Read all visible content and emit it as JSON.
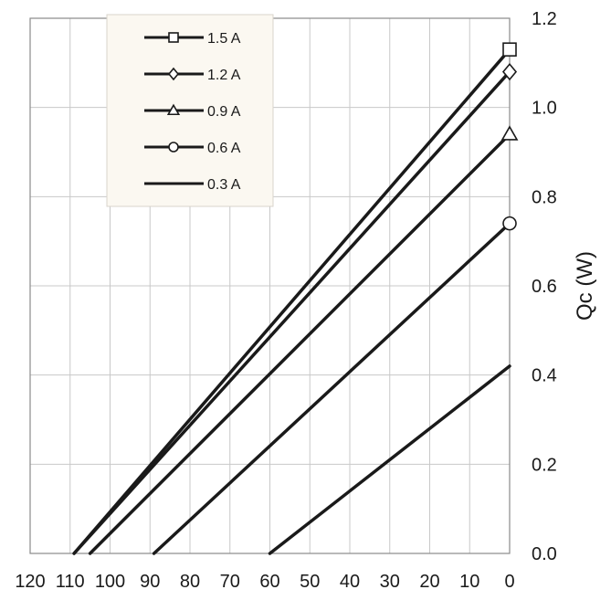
{
  "chart_data": {
    "type": "line",
    "xlabel": "",
    "ylabel": "Qc (W)",
    "xlim": [
      120,
      0
    ],
    "ylim": [
      0.0,
      1.2
    ],
    "x_reversed": true,
    "grid": true,
    "legend_position": "top-left",
    "x_tick_labels": [
      "120",
      "110",
      "100",
      "90",
      "80",
      "70",
      "60",
      "50",
      "40",
      "30",
      "20",
      "10",
      "0"
    ],
    "y_tick_labels": [
      "0.0",
      "0.2",
      "0.4",
      "0.6",
      "0.8",
      "1.0",
      "1.2"
    ],
    "series": [
      {
        "name": "1.5 A",
        "marker": "square",
        "x": [
          109,
          0
        ],
        "y": [
          0.0,
          1.13
        ]
      },
      {
        "name": "1.2 A",
        "marker": "diamond",
        "x": [
          109,
          0
        ],
        "y": [
          0.0,
          1.08
        ]
      },
      {
        "name": "0.9 A",
        "marker": "triangle",
        "x": [
          105,
          0
        ],
        "y": [
          0.0,
          0.94
        ]
      },
      {
        "name": "0.6 A",
        "marker": "circle",
        "x": [
          89,
          0
        ],
        "y": [
          0.0,
          0.74
        ]
      },
      {
        "name": "0.3 A",
        "marker": "none",
        "x": [
          60,
          0
        ],
        "y": [
          0.0,
          0.42
        ]
      }
    ],
    "colors": {
      "line": "#1a1a1a",
      "grid": "#c8c8c8",
      "legend_bg": "#fbf8f1"
    }
  }
}
